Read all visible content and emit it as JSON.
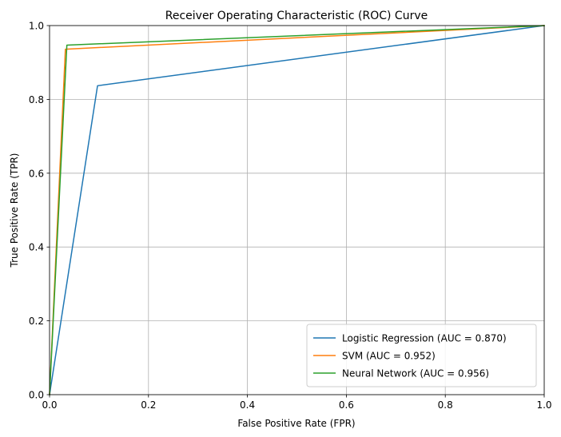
{
  "chart_data": {
    "type": "line",
    "title": "Receiver Operating Characteristic (ROC) Curve",
    "xlabel": "False Positive Rate (FPR)",
    "ylabel": "True Positive Rate (TPR)",
    "xlim": [
      0,
      1
    ],
    "ylim": [
      0,
      1
    ],
    "xticks": [
      "0.0",
      "0.2",
      "0.4",
      "0.6",
      "0.8",
      "1.0"
    ],
    "yticks": [
      "0.0",
      "0.2",
      "0.4",
      "0.6",
      "0.8",
      "1.0"
    ],
    "grid": true,
    "legend_position": "lower-right",
    "series": [
      {
        "name": "Logistic Regression (AUC = 0.870)",
        "color": "#1f77b4",
        "x": [
          0.0,
          0.097,
          1.0
        ],
        "y": [
          0.0,
          0.837,
          1.0
        ]
      },
      {
        "name": "SVM (AUC = 0.952)",
        "color": "#ff7f0e",
        "x": [
          0.0,
          0.032,
          1.0
        ],
        "y": [
          0.0,
          0.936,
          1.0
        ]
      },
      {
        "name": "Neural Network (AUC = 0.956)",
        "color": "#2ca02c",
        "x": [
          0.0,
          0.035,
          1.0
        ],
        "y": [
          0.0,
          0.947,
          1.0
        ]
      }
    ]
  }
}
